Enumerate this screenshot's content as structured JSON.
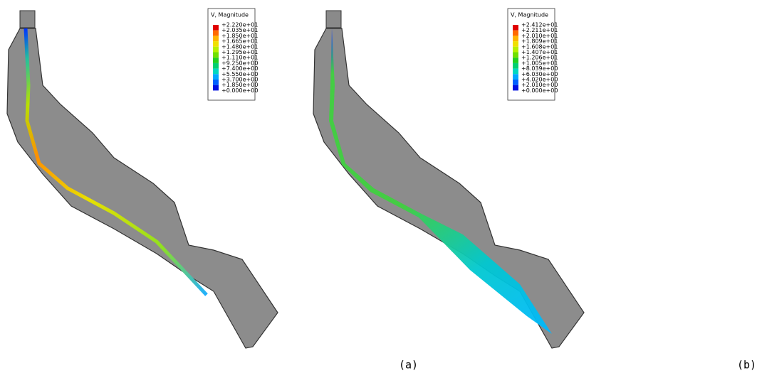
{
  "panels": [
    {
      "caption": "(a)",
      "legend": {
        "title": "V, Magnitude",
        "labels": [
          "+2.220e+01",
          "+2.035e+01",
          "+1.850e+01",
          "+1.665e+01",
          "+1.480e+01",
          "+1.295e+01",
          "+1.110e+01",
          "+9.250e+00",
          "+7.400e+00",
          "+5.550e+00",
          "+3.700e+00",
          "+1.850e+00",
          "+0.000e+00"
        ],
        "colors": [
          "#e00000",
          "#ff6a00",
          "#ffb400",
          "#f0e000",
          "#b8f000",
          "#70e000",
          "#20d020",
          "#00d070",
          "#00d8c0",
          "#00a8ff",
          "#0060ff",
          "#0010e0",
          "#999999"
        ]
      }
    },
    {
      "caption": "(b)",
      "legend": {
        "title": "V, Magnitude",
        "labels": [
          "+2.412e+01",
          "+2.211e+01",
          "+2.010e+01",
          "+1.809e+01",
          "+1.608e+01",
          "+1.407e+01",
          "+1.206e+01",
          "+1.005e+01",
          "+8.039e+00",
          "+6.030e+00",
          "+4.020e+00",
          "+2.010e+00",
          "+0.000e+00"
        ],
        "colors": [
          "#e00000",
          "#ff6a00",
          "#ffb400",
          "#f0e000",
          "#b8f000",
          "#70e000",
          "#20d020",
          "#00d070",
          "#00d8c0",
          "#00a8ff",
          "#0060ff",
          "#0010e0",
          "#999999"
        ]
      }
    }
  ]
}
